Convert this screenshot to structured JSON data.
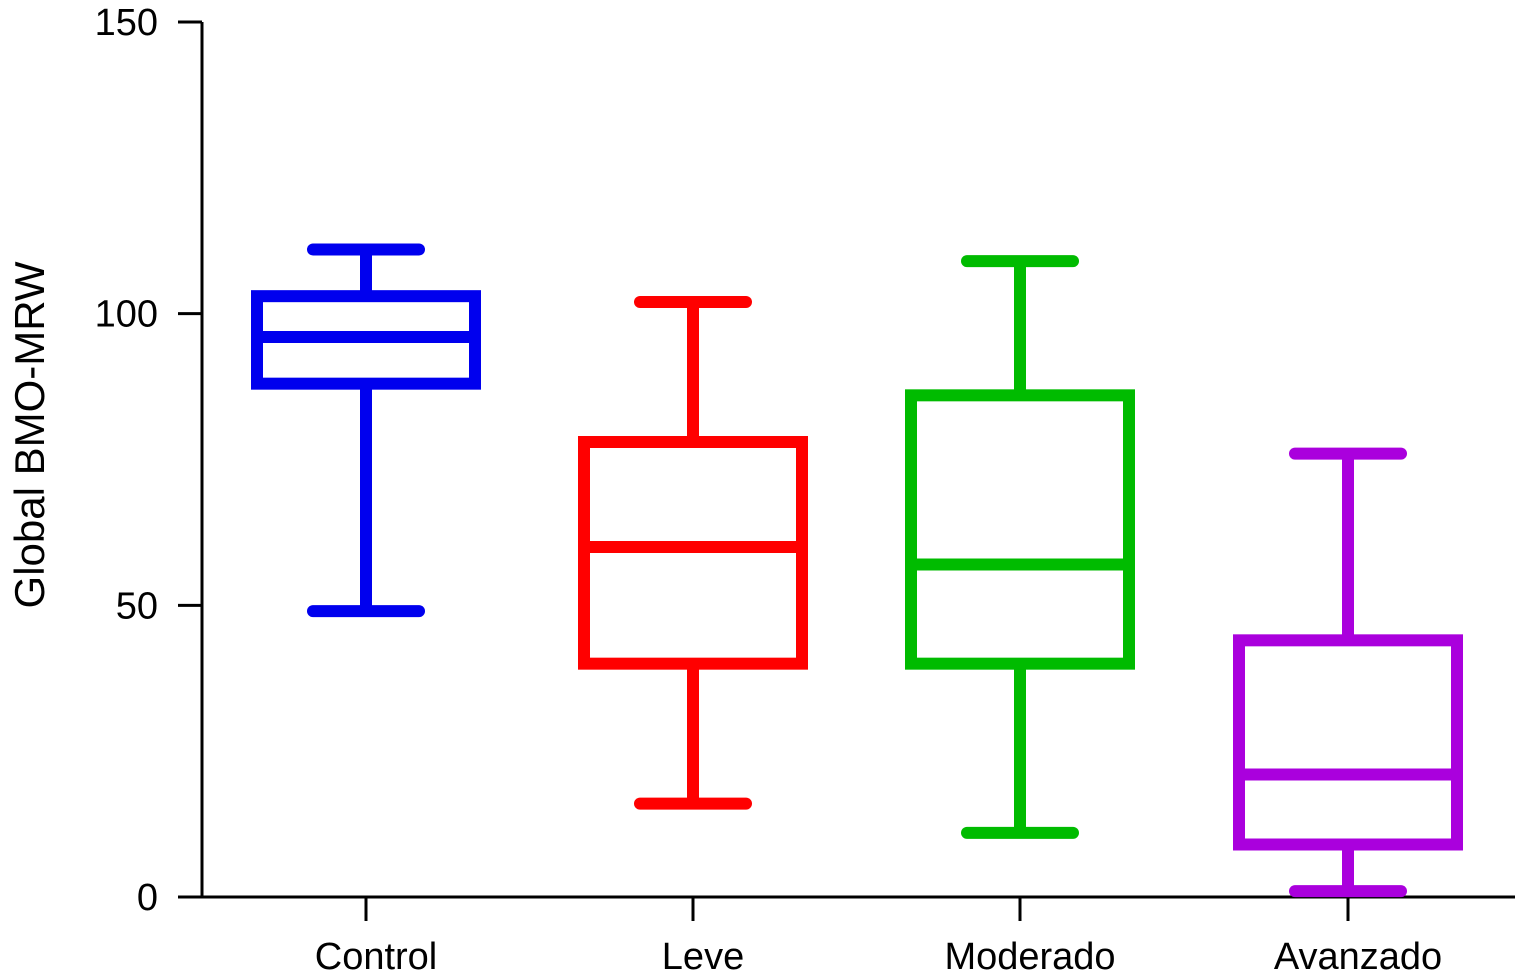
{
  "chart_data": {
    "type": "boxplot",
    "title": "",
    "xlabel": "",
    "ylabel": "Global BMO-MRW",
    "ylim": [
      0,
      150
    ],
    "yticks": [
      0,
      50,
      100,
      150
    ],
    "grid": false,
    "legend": "none",
    "categories": [
      "Control",
      "Leve",
      "Moderado",
      "Avanzado"
    ],
    "series": [
      {
        "category": "Control",
        "color": "#0000ee",
        "min": 49,
        "q1": 88,
        "median": 96,
        "q3": 103,
        "max": 111
      },
      {
        "category": "Leve",
        "color": "#ff0000",
        "min": 16,
        "q1": 40,
        "median": 60,
        "q3": 78,
        "max": 102
      },
      {
        "category": "Moderado",
        "color": "#00bb00",
        "min": 11,
        "q1": 40,
        "median": 57,
        "q3": 86,
        "max": 109
      },
      {
        "category": "Avanzado",
        "color": "#aa00dd",
        "min": 1,
        "q1": 9,
        "median": 21,
        "q3": 44,
        "max": 76
      }
    ]
  }
}
